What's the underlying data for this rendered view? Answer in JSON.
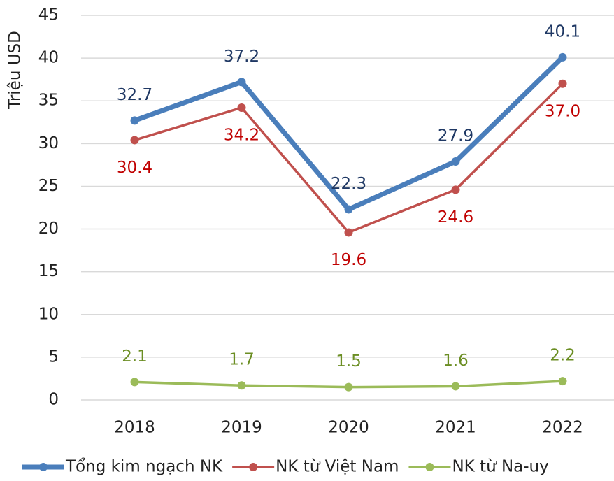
{
  "chart_data": {
    "type": "line",
    "y_label": "Triệu USD",
    "categories": [
      "2018",
      "2019",
      "2020",
      "2021",
      "2022"
    ],
    "series": [
      {
        "name": "Tổng kim ngạch NK",
        "color": "#4a7ebb",
        "label_color": "#1f3864",
        "label_position": "above",
        "line_width": 7,
        "values": [
          32.7,
          37.2,
          22.3,
          27.9,
          40.1
        ]
      },
      {
        "name": "NK từ Việt Nam",
        "color": "#c0504d",
        "label_color": "#c00000",
        "label_position": "below",
        "line_width": 3.5,
        "values": [
          30.4,
          34.2,
          19.6,
          24.6,
          37.0
        ],
        "value_labels": [
          "30.4",
          "34.2",
          "19.6",
          "24.6",
          "37.0"
        ]
      },
      {
        "name": "NK từ Na-uy",
        "color": "#9bbb59",
        "label_color": "#6b8e23",
        "label_position": "above",
        "line_width": 3.5,
        "values": [
          2.1,
          1.7,
          1.5,
          1.6,
          2.2
        ]
      }
    ],
    "ylim": [
      0,
      45
    ],
    "yticks": [
      0,
      5,
      10,
      15,
      20,
      25,
      30,
      35,
      40,
      45
    ],
    "grid": true,
    "legend": "bottom"
  }
}
